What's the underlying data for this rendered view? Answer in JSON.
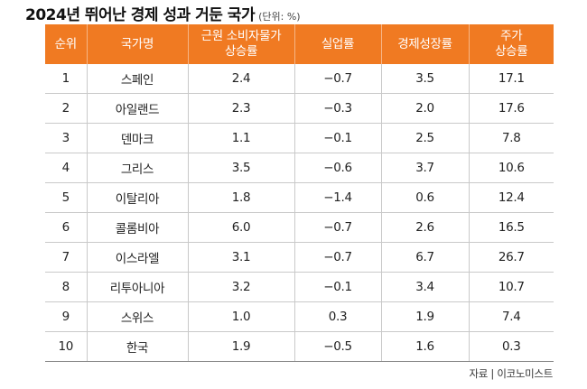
{
  "title": "2024년 뛰어난 경제 성과 거둔 국가",
  "unit": "(단위: %)",
  "columns": {
    "rank": "순위",
    "country": "국가명",
    "cpi_line1": "근원 소비자물가",
    "cpi_line2": "상승률",
    "unemployment": "실업률",
    "gdp": "경제성장률",
    "stock_line1": "주가",
    "stock_line2": "상승률"
  },
  "rows": [
    {
      "rank": "1",
      "country": "스페인",
      "cpi": "2.4",
      "unemployment": "−0.7",
      "gdp": "3.5",
      "stock": "17.1"
    },
    {
      "rank": "2",
      "country": "아일랜드",
      "cpi": "2.3",
      "unemployment": "−0.3",
      "gdp": "2.0",
      "stock": "17.6"
    },
    {
      "rank": "3",
      "country": "덴마크",
      "cpi": "1.1",
      "unemployment": "−0.1",
      "gdp": "2.5",
      "stock": "7.8"
    },
    {
      "rank": "4",
      "country": "그리스",
      "cpi": "3.5",
      "unemployment": "−0.6",
      "gdp": "3.7",
      "stock": "10.6"
    },
    {
      "rank": "5",
      "country": "이탈리아",
      "cpi": "1.8",
      "unemployment": "−1.4",
      "gdp": "0.6",
      "stock": "12.4"
    },
    {
      "rank": "6",
      "country": "콜롬비아",
      "cpi": "6.0",
      "unemployment": "−0.7",
      "gdp": "2.6",
      "stock": "16.5"
    },
    {
      "rank": "7",
      "country": "이스라엘",
      "cpi": "3.1",
      "unemployment": "−0.7",
      "gdp": "6.7",
      "stock": "26.7"
    },
    {
      "rank": "8",
      "country": "리투아니아",
      "cpi": "3.2",
      "unemployment": "−0.1",
      "gdp": "3.4",
      "stock": "10.7"
    },
    {
      "rank": "9",
      "country": "스위스",
      "cpi": "1.0",
      "unemployment": "0.3",
      "gdp": "1.9",
      "stock": "7.4"
    },
    {
      "rank": "10",
      "country": "한국",
      "cpi": "1.9",
      "unemployment": "−0.5",
      "gdp": "1.6",
      "stock": "0.3"
    }
  ],
  "source": "자료 | 이코노미스트",
  "colors": {
    "header_bg": "#f07a22",
    "header_text": "#ffffff",
    "grid": "#c9c9c9"
  }
}
